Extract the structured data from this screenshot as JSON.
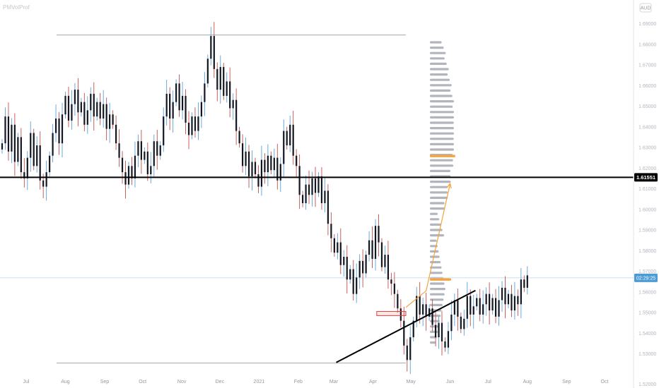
{
  "header": {
    "indicator_label": "PMVolProf",
    "currency_badge": "AUD"
  },
  "chart_data": {
    "type": "candlestick",
    "symbol_currency": "AUD",
    "y_axis": {
      "ylim": [
        1.5185,
        1.6985
      ],
      "tick_values": [
        1.69,
        1.68,
        1.67,
        1.66,
        1.65,
        1.64,
        1.63,
        1.62,
        1.61,
        1.6,
        1.59,
        1.58,
        1.57,
        1.56,
        1.55,
        1.54,
        1.53
      ],
      "tick_labels": [
        "1.69000",
        "1.68000",
        "1.67000",
        "1.66000",
        "1.65000",
        "1.64000",
        "1.63000",
        "1.62000",
        "1.61000",
        "1.60000",
        "1.59000",
        "1.58000",
        "1.57000",
        "1.56000",
        "1.55000",
        "1.54000",
        "1.53000"
      ],
      "bottom_label": "1.52000"
    },
    "x_axis": {
      "labels": [
        "Jul",
        "Aug",
        "Sep",
        "Oct",
        "Nov",
        "Dec",
        "2021",
        "Feb",
        "Mar",
        "Apr",
        "May",
        "Jun",
        "Jul",
        "Aug",
        "Sep",
        "Oct"
      ],
      "label_days": [
        0,
        31,
        62,
        92,
        123,
        153,
        184,
        215,
        243,
        274,
        304,
        335,
        365,
        396,
        427,
        457
      ]
    },
    "current_price": {
      "value": 1.61551,
      "label": "1.61551",
      "color": "#000000"
    },
    "countdown": {
      "value": 1.5668,
      "label": "02:29:25",
      "color": "#4c9bd6"
    },
    "colors": {
      "up": "#5b9fd8",
      "down": "#c0504d",
      "body": "#131722",
      "support": "#000000",
      "projection": "#f7a23b",
      "zone": "#e0403a",
      "profile": "#b2b5be",
      "poc": "#f7a23b"
    },
    "range_lines": [
      {
        "name": "range-high",
        "value": 1.6845,
        "day_from": 24,
        "day_to": 300
      },
      {
        "name": "range-low",
        "value": 1.5255,
        "day_from": 24,
        "day_to": 300
      }
    ],
    "support_line": {
      "from": {
        "day": 245,
        "value": 1.5258
      },
      "to": {
        "day": 355,
        "value": 1.5607
      }
    },
    "projection": [
      {
        "day": 300,
        "value": 1.5525
      },
      {
        "day": 316,
        "value": 1.5605
      },
      {
        "day": 335,
        "value": 1.6125
      }
    ],
    "resistance_zone": {
      "day_from": 277,
      "day_to": 300,
      "top": 1.5505,
      "bottom": 1.5485
    },
    "candles": {
      "start_day": -19,
      "step_days": 2.5,
      "closes": [
        1.632,
        1.645,
        1.628,
        1.641,
        1.623,
        1.635,
        1.618,
        1.615,
        1.625,
        1.637,
        1.621,
        1.631,
        1.614,
        1.611,
        1.618,
        1.626,
        1.637,
        1.644,
        1.632,
        1.646,
        1.655,
        1.643,
        1.651,
        1.658,
        1.647,
        1.652,
        1.641,
        1.648,
        1.656,
        1.645,
        1.652,
        1.644,
        1.651,
        1.639,
        1.646,
        1.641,
        1.632,
        1.625,
        1.618,
        1.612,
        1.621,
        1.615,
        1.626,
        1.633,
        1.624,
        1.628,
        1.617,
        1.621,
        1.633,
        1.626,
        1.631,
        1.645,
        1.656,
        1.644,
        1.652,
        1.661,
        1.648,
        1.655,
        1.642,
        1.636,
        1.645,
        1.638,
        1.645,
        1.652,
        1.661,
        1.673,
        1.684,
        1.668,
        1.658,
        1.669,
        1.655,
        1.662,
        1.649,
        1.653,
        1.638,
        1.632,
        1.621,
        1.628,
        1.616,
        1.623,
        1.617,
        1.611,
        1.624,
        1.618,
        1.626,
        1.619,
        1.625,
        1.614,
        1.622,
        1.638,
        1.631,
        1.641,
        1.626,
        1.621,
        1.607,
        1.603,
        1.612,
        1.607,
        1.615,
        1.608,
        1.616,
        1.603,
        1.609,
        1.593,
        1.586,
        1.579,
        1.584,
        1.573,
        1.577,
        1.566,
        1.571,
        1.559,
        1.567,
        1.575,
        1.569,
        1.578,
        1.585,
        1.576,
        1.592,
        1.584,
        1.572,
        1.578,
        1.566,
        1.564,
        1.559,
        1.552,
        1.546,
        1.534,
        1.527,
        1.538,
        1.546,
        1.558,
        1.549,
        1.554,
        1.548,
        1.552,
        1.544,
        1.538,
        1.545,
        1.536,
        1.533,
        1.541,
        1.549,
        1.556,
        1.548,
        1.542,
        1.547,
        1.558,
        1.549,
        1.553,
        1.557,
        1.549,
        1.554,
        1.559,
        1.551,
        1.557,
        1.548,
        1.556,
        1.562,
        1.554,
        1.559,
        1.551,
        1.558,
        1.554,
        1.566,
        1.562,
        1.568
      ]
    }
  }
}
